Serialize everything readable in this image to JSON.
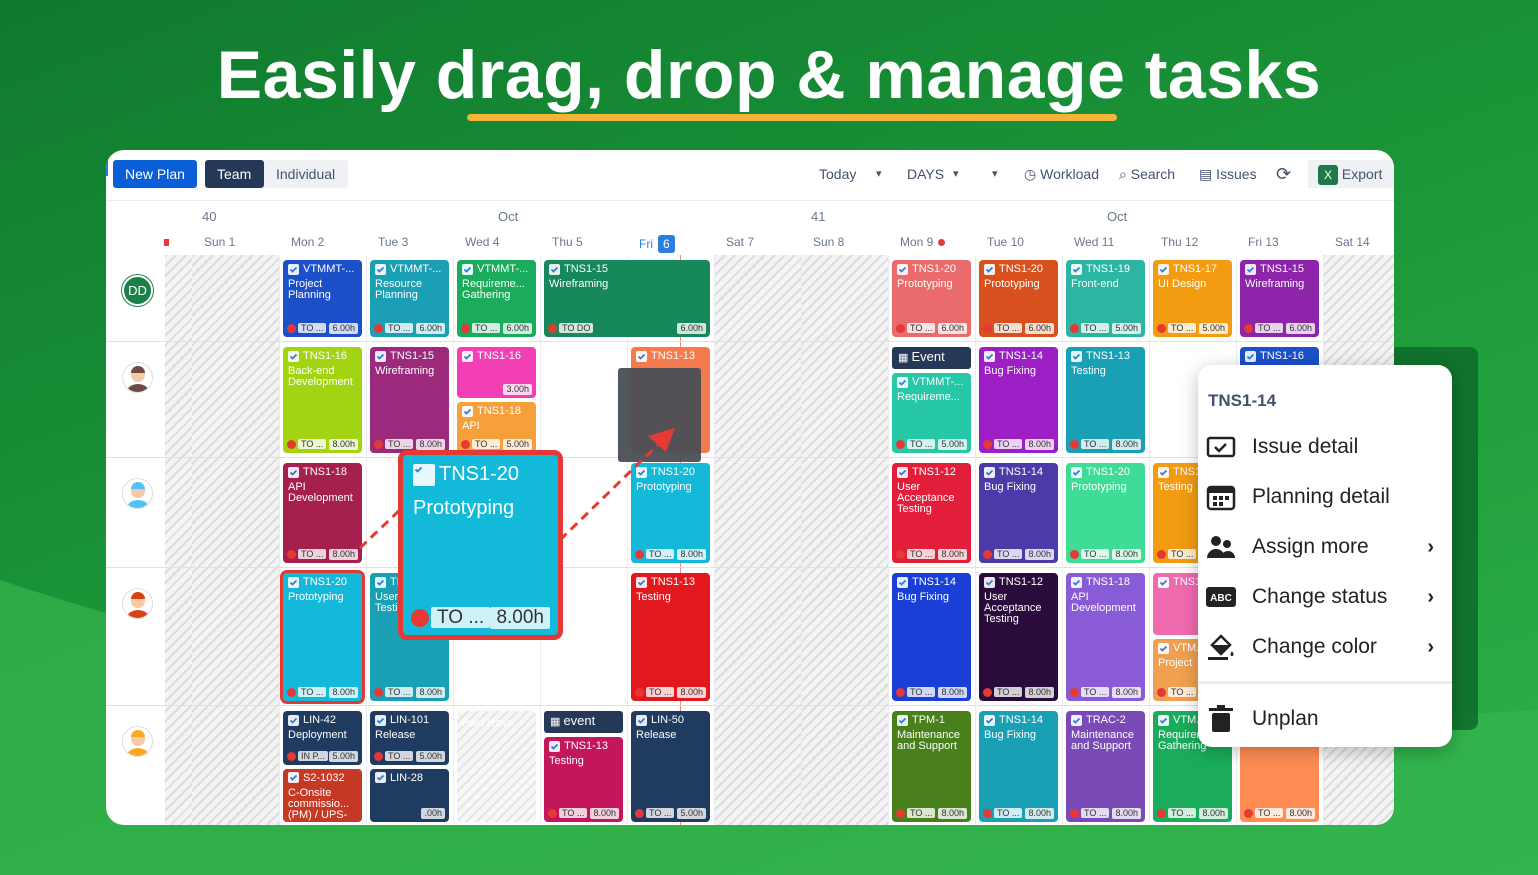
{
  "headline": "Easily drag, drop & manage tasks",
  "toolbar": {
    "new_plan": "New Plan",
    "team": "Team",
    "individual": "Individual",
    "today": "Today",
    "days": "DAYS",
    "workload": "Workload",
    "search": "Search",
    "issues": "Issues",
    "export": "Export"
  },
  "weeks": [
    {
      "number": "40",
      "month": "Oct"
    },
    {
      "number": "41",
      "month": "Oct"
    }
  ],
  "days": [
    "Sun 1",
    "Mon 2",
    "Tue 3",
    "Wed 4",
    "Thu 5",
    "Fri",
    "Sat 7",
    "Sun 8",
    "Mon 9",
    "Tue 10",
    "Wed 11",
    "Thu 12",
    "Fri 13",
    "Sat 14"
  ],
  "today_date": "6",
  "rows": [
    {
      "avatar": "DD",
      "cells": [
        [],
        [
          {
            "key": "VTMMT-...",
            "title": "Project Planning",
            "status": "TO ...",
            "hours": "6.00h",
            "color": "#1d4fc8"
          }
        ],
        [
          {
            "key": "VTMMT-...",
            "title": "Resource Planning",
            "status": "TO ...",
            "hours": "6.00h",
            "color": "#1a9fb5"
          }
        ],
        [
          {
            "key": "VTMMT-...",
            "title": "Requireme... Gathering",
            "status": "TO ...",
            "hours": "6.00h",
            "color": "#1aac5c"
          }
        ],
        [
          {
            "key": "TNS1-15",
            "title": "Wireframing",
            "status": "TO DO",
            "hours": "6.00h",
            "color": "#16885a",
            "span": 2
          }
        ],
        [],
        [],
        [],
        [
          {
            "key": "TNS1-20",
            "title": "Prototyping",
            "status": "TO ...",
            "hours": "6.00h",
            "color": "#e96b6b"
          }
        ],
        [
          {
            "key": "TNS1-20",
            "title": "Prototyping",
            "status": "TO ...",
            "hours": "6.00h",
            "color": "#d9501f"
          }
        ],
        [
          {
            "key": "TNS1-19",
            "title": "Front-end",
            "status": "TO ...",
            "hours": "5.00h",
            "color": "#2cb5a0"
          }
        ],
        [
          {
            "key": "TNS1-17",
            "title": "UI Design",
            "status": "TO ...",
            "hours": "5.00h",
            "color": "#f39c12"
          }
        ],
        [
          {
            "key": "TNS1-15",
            "title": "Wireframing",
            "status": "TO ...",
            "hours": "6.00h",
            "color": "#8e24aa"
          }
        ],
        []
      ]
    },
    {
      "cells": [
        [],
        [
          {
            "key": "TNS1-16",
            "title": "Back-end Development",
            "status": "TO ...",
            "hours": "8.00h",
            "color": "#a3d414"
          }
        ],
        [
          {
            "key": "TNS1-15",
            "title": "Wireframing",
            "status": "TO ...",
            "hours": "8.00h",
            "color": "#9b2a7c"
          }
        ],
        [
          {
            "key": "TNS1-16",
            "hours": "3.00h",
            "color": "#f23fb6"
          },
          {
            "key": "TNS1-18",
            "title": "API",
            "status": "TO ...",
            "hours": "5.00h",
            "color": "#f5a03a"
          }
        ],
        [],
        [
          {
            "key": "TNS1-13",
            "color": "#f47b4e"
          }
        ],
        [],
        [],
        [
          {
            "event": "Event"
          },
          {
            "key": "VTMMT-...",
            "title": "Requireme...",
            "status": "TO ...",
            "hours": "5.00h",
            "color": "#27c8a8"
          }
        ],
        [
          {
            "key": "TNS1-14",
            "title": "Bug Fixing",
            "status": "TO ...",
            "hours": "8.00h",
            "color": "#9c1fc6"
          }
        ],
        [
          {
            "key": "TNS1-13",
            "title": "Testing",
            "status": "TO ...",
            "hours": "8.00h",
            "color": "#1aa0b5"
          }
        ],
        [],
        [
          {
            "key": "TNS1-16",
            "color": "#1d4fc8"
          }
        ],
        []
      ]
    },
    {
      "cells": [
        [],
        [
          {
            "key": "TNS1-18",
            "title": "API Development",
            "status": "TO ...",
            "hours": "8.00h",
            "color": "#a51f4f"
          }
        ],
        [],
        [],
        [],
        [
          {
            "key": "TNS1-20",
            "title": "Prototyping",
            "status": "TO ...",
            "hours": "8.00h",
            "color": "#13b9d9"
          }
        ],
        [],
        [],
        [
          {
            "key": "TNS1-12",
            "title": "User Acceptance Testing",
            "status": "TO ...",
            "hours": "8.00h",
            "color": "#e21e3a"
          }
        ],
        [
          {
            "key": "TNS1-14",
            "title": "Bug Fixing",
            "status": "TO ...",
            "hours": "8.00h",
            "color": "#4a3ba8"
          }
        ],
        [
          {
            "key": "TNS1-20",
            "title": "Prototyping",
            "status": "TO ...",
            "hours": "8.00h",
            "color": "#3fdc98"
          }
        ],
        [
          {
            "key": "TNS1...",
            "title": "Testing",
            "status": "TO ...",
            "color": "#f39c12"
          }
        ],
        [],
        []
      ]
    },
    {
      "cells": [
        [],
        [
          {
            "key": "TNS1-20",
            "title": "Prototyping",
            "status": "TO ...",
            "hours": "8.00h",
            "color": "#13b9d9",
            "selected": true
          }
        ],
        [
          {
            "key": "TN...",
            "title": "User Acce... Testi...",
            "status": "TO ...",
            "hours": "8.00h",
            "color": "#1aa0b5"
          }
        ],
        [],
        [],
        [
          {
            "key": "TNS1-13",
            "title": "Testing",
            "status": "TO ...",
            "hours": "8.00h",
            "color": "#e3171e"
          }
        ],
        [],
        [],
        [
          {
            "key": "TNS1-14",
            "title": "Bug Fixing",
            "status": "TO ...",
            "hours": "8.00h",
            "color": "#1a3fd6"
          }
        ],
        [
          {
            "key": "TNS1-12",
            "title": "User Acceptance Testing",
            "status": "TO ...",
            "hours": "8.00h",
            "color": "#2b0b3b"
          }
        ],
        [
          {
            "key": "TNS1-18",
            "title": "API Development",
            "status": "TO ...",
            "hours": "8.00h",
            "color": "#8a5bd6"
          }
        ],
        [
          {
            "key": "TNS1...",
            "color": "#f06ab0"
          },
          {
            "key": "VTM...",
            "title": "Project",
            "status": "TO ...",
            "color": "#f0a050"
          }
        ],
        [],
        []
      ]
    },
    {
      "cells": [
        [],
        [
          {
            "key": "LIN-42",
            "title": "Deployment",
            "status": "IN P...",
            "hours": "5.00h",
            "color": "#1f3b60"
          },
          {
            "key": "S2-1032",
            "title": "C-Onsite commissio... (PM) / UPS-",
            "color": "#c63a25"
          }
        ],
        [
          {
            "key": "LIN-101",
            "title": "Release",
            "status": "TO ...",
            "hours": "5.00h",
            "color": "#1f3b60"
          },
          {
            "key": "LIN-28",
            "hours": ".00h",
            "color": "#1f3b60"
          }
        ],
        [
          {
            "title": "Paid leave",
            "color": "#9e9e9e",
            "leave": true
          }
        ],
        [
          {
            "event": "event"
          },
          {
            "key": "TNS1-13",
            "title": "Testing",
            "status": "TO ...",
            "hours": "8.00h",
            "color": "#c2185b"
          }
        ],
        [
          {
            "key": "LIN-50",
            "title": "Release",
            "status": "TO ...",
            "hours": "5.00h",
            "color": "#1f3b60"
          }
        ],
        [],
        [],
        [
          {
            "key": "TPM-1",
            "title": "Maintenance and Support",
            "status": "TO ...",
            "hours": "8.00h",
            "color": "#4a801b"
          }
        ],
        [
          {
            "key": "TNS1-14",
            "title": "Bug Fixing",
            "status": "TO ...",
            "hours": "8.00h",
            "color": "#1aa0b5"
          }
        ],
        [
          {
            "key": "TRAC-2",
            "title": "Maintenance and Support",
            "status": "TO ...",
            "hours": "8.00h",
            "color": "#7a4bb6"
          }
        ],
        [
          {
            "key": "VTM...",
            "title": "Requirem... Gathering",
            "status": "TO ...",
            "hours": "8.00h",
            "color": "#1aac5c"
          }
        ],
        [
          {
            "status": "TO ...",
            "hours": "8.00h",
            "color": "#ff8c52"
          }
        ],
        []
      ]
    }
  ],
  "dragged": {
    "key": "TNS1-20",
    "title": "Prototyping",
    "status": "TO ...",
    "hours": "8.00h",
    "color": "#13b9d9"
  },
  "menu": {
    "title": "TNS1-14",
    "items": [
      {
        "label": "Issue detail"
      },
      {
        "label": "Planning detail"
      },
      {
        "label": "Assign more",
        "submenu": true
      },
      {
        "label": "Change status",
        "submenu": true
      },
      {
        "label": "Change color",
        "submenu": true
      },
      {
        "label": "Unplan"
      }
    ]
  }
}
